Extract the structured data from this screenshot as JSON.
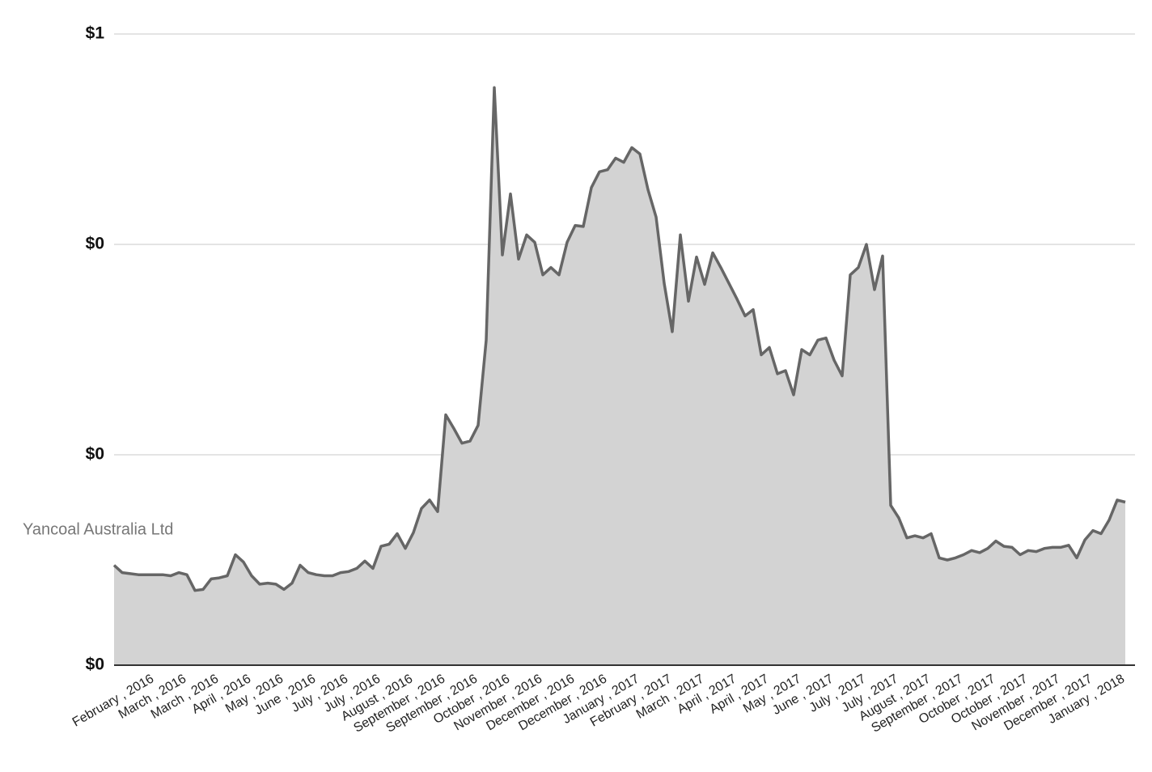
{
  "chart_data": {
    "type": "area",
    "categories": [
      null,
      null,
      null,
      null,
      null,
      "February , 2016",
      null,
      null,
      null,
      "March , 2016",
      null,
      null,
      null,
      "March , 2016",
      null,
      null,
      null,
      "April , 2016",
      null,
      null,
      null,
      "May , 2016",
      null,
      null,
      null,
      "June , 2016",
      null,
      null,
      null,
      "July , 2016",
      null,
      null,
      null,
      "July , 2016",
      null,
      null,
      null,
      "August , 2016",
      null,
      null,
      null,
      "September , 2016",
      null,
      null,
      null,
      "September , 2016",
      null,
      null,
      null,
      "October , 2016",
      null,
      null,
      null,
      "November , 2016",
      null,
      null,
      null,
      "December , 2016",
      null,
      null,
      null,
      "December , 2016",
      null,
      null,
      null,
      "January , 2017",
      null,
      null,
      null,
      "February , 2017",
      null,
      null,
      null,
      "March , 2017",
      null,
      null,
      null,
      "April , 2017",
      null,
      null,
      null,
      "April , 2017",
      null,
      null,
      null,
      "May , 2017",
      null,
      null,
      null,
      "June , 2017",
      null,
      null,
      null,
      "July , 2017",
      null,
      null,
      null,
      "July , 2017",
      null,
      null,
      null,
      "August , 2017",
      null,
      null,
      null,
      "September , 2017",
      null,
      null,
      null,
      "October , 2017",
      null,
      null,
      null,
      "October , 2017",
      null,
      null,
      null,
      "November , 2017",
      null,
      null,
      null,
      "December , 2017",
      null,
      null,
      null,
      "January , 2018"
    ],
    "series": [
      {
        "name": "Yancoal Australia Ltd",
        "color": "#666666",
        "fill": "#d3d3d3",
        "values": [
          0.095,
          0.088,
          0.087,
          0.086,
          0.086,
          0.086,
          0.086,
          0.085,
          0.088,
          0.086,
          0.071,
          0.072,
          0.082,
          0.083,
          0.085,
          0.105,
          0.098,
          0.085,
          0.077,
          0.078,
          0.077,
          0.072,
          0.078,
          0.095,
          0.088,
          0.086,
          0.085,
          0.085,
          0.088,
          0.089,
          0.092,
          0.099,
          0.092,
          0.113,
          0.115,
          0.125,
          0.111,
          0.126,
          0.149,
          0.157,
          0.146,
          0.238,
          0.225,
          0.211,
          0.213,
          0.228,
          0.309,
          0.549,
          0.39,
          0.448,
          0.386,
          0.409,
          0.402,
          0.371,
          0.378,
          0.371,
          0.402,
          0.418,
          0.417,
          0.454,
          0.469,
          0.471,
          0.482,
          0.478,
          0.492,
          0.486,
          0.452,
          0.426,
          0.363,
          0.317,
          0.409,
          0.346,
          0.388,
          0.362,
          0.392,
          0.378,
          0.363,
          0.348,
          0.332,
          0.338,
          0.295,
          0.302,
          0.277,
          0.28,
          0.257,
          0.3,
          0.295,
          0.309,
          0.311,
          0.29,
          0.275,
          0.371,
          0.378,
          0.4,
          0.357,
          0.389,
          0.152,
          0.14,
          0.121,
          0.123,
          0.121,
          0.125,
          0.102,
          0.1,
          0.102,
          0.105,
          0.109,
          0.107,
          0.111,
          0.118,
          0.113,
          0.112,
          0.105,
          0.109,
          0.108,
          0.111,
          0.112,
          0.112,
          0.114,
          0.102,
          0.119,
          0.128,
          0.125,
          0.138,
          0.157,
          0.155
        ]
      }
    ],
    "ylim": [
      0,
      0.6
    ],
    "yticks": [
      {
        "value": 0,
        "label": "$0"
      },
      {
        "value": 0.2,
        "label": "$0"
      },
      {
        "value": 0.4,
        "label": "$0"
      },
      {
        "value": 0.6,
        "label": "$1"
      }
    ],
    "grid": true
  }
}
